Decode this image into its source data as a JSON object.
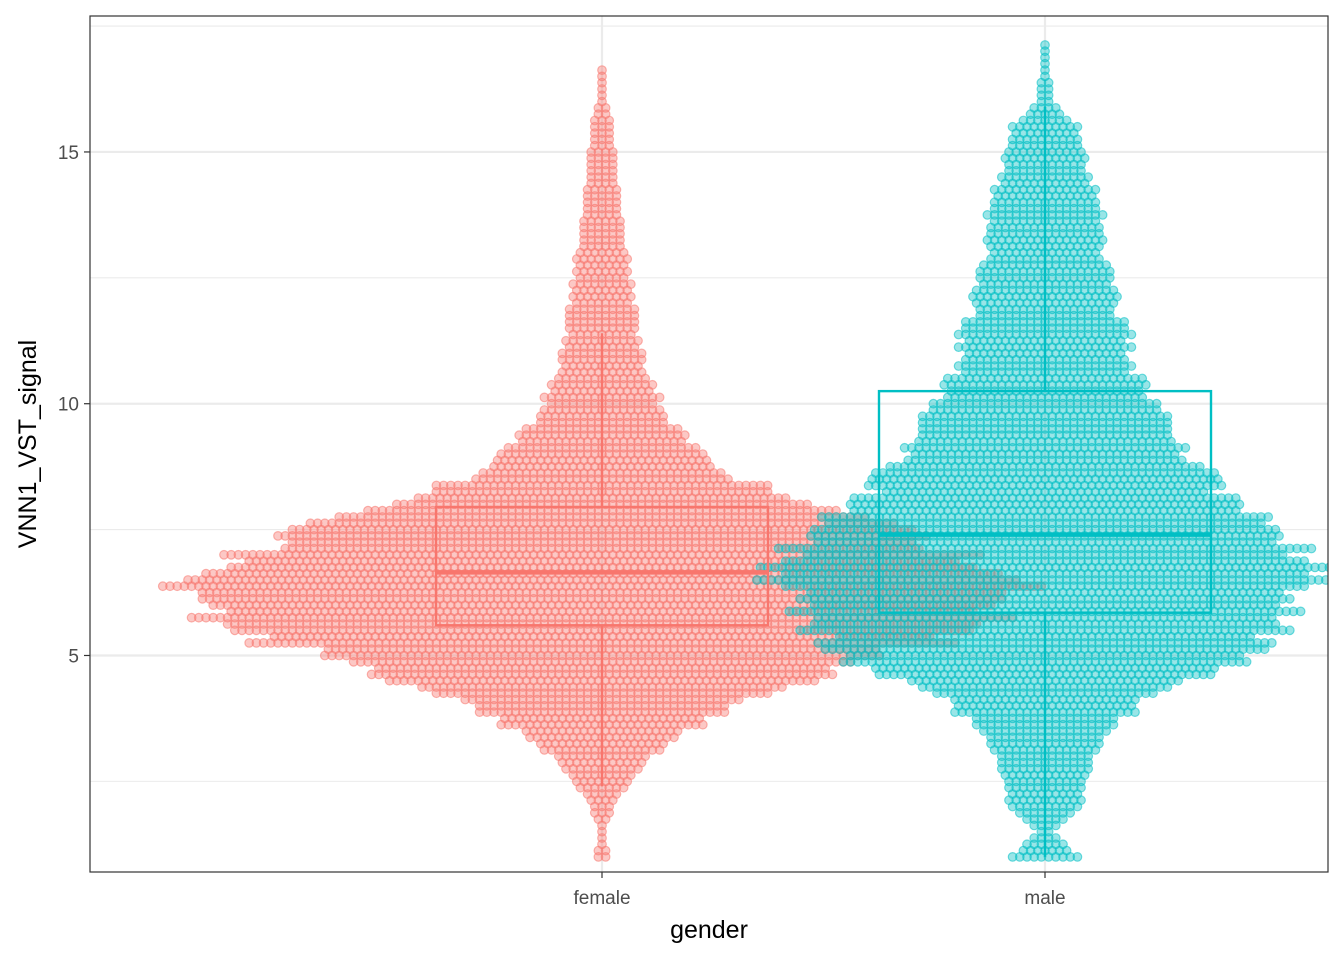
{
  "chart_data": {
    "type": "box",
    "overlay": "beeswarm",
    "xlabel": "gender",
    "ylabel": "VNN1_VST_signal",
    "categories": [
      "female",
      "male"
    ],
    "ylim": [
      0.7,
      17.7
    ],
    "yticks": [
      5,
      10,
      15
    ],
    "grid": true,
    "legend": "none",
    "colors": {
      "female": "#F8766D",
      "male": "#00BFC4"
    },
    "boxes": [
      {
        "name": "female",
        "q1": 5.6,
        "median": 6.65,
        "q3": 7.95,
        "whisker_low": 2.4,
        "whisker_high": 11.4,
        "min": 1.0,
        "max": 16.6,
        "color": "#F8766D"
      },
      {
        "name": "male",
        "q1": 5.85,
        "median": 7.4,
        "q3": 10.25,
        "whisker_low": 1.0,
        "whisker_high": 15.9,
        "min": 1.0,
        "max": 17.0,
        "color": "#00BFC4"
      }
    ],
    "distribution": {
      "female": [
        [
          1.0,
          2
        ],
        [
          1.5,
          1
        ],
        [
          2.0,
          3
        ],
        [
          2.5,
          8
        ],
        [
          3.0,
          14
        ],
        [
          3.5,
          24
        ],
        [
          4.0,
          36
        ],
        [
          4.5,
          58
        ],
        [
          5.0,
          80
        ],
        [
          5.5,
          100
        ],
        [
          6.0,
          112
        ],
        [
          6.5,
          118
        ],
        [
          7.0,
          102
        ],
        [
          7.5,
          82
        ],
        [
          8.0,
          56
        ],
        [
          8.5,
          38
        ],
        [
          9.0,
          28
        ],
        [
          9.5,
          20
        ],
        [
          10.0,
          16
        ],
        [
          10.5,
          13
        ],
        [
          11.0,
          11
        ],
        [
          11.5,
          10
        ],
        [
          12.0,
          9
        ],
        [
          12.5,
          8
        ],
        [
          13.0,
          7
        ],
        [
          13.5,
          6
        ],
        [
          14.0,
          5
        ],
        [
          14.5,
          4
        ],
        [
          15.0,
          4
        ],
        [
          15.5,
          3
        ],
        [
          16.0,
          1
        ],
        [
          16.5,
          1
        ]
      ],
      "male": [
        [
          1.0,
          10
        ],
        [
          1.5,
          2
        ],
        [
          2.0,
          10
        ],
        [
          2.5,
          12
        ],
        [
          3.0,
          14
        ],
        [
          3.5,
          18
        ],
        [
          4.0,
          26
        ],
        [
          4.5,
          38
        ],
        [
          5.0,
          56
        ],
        [
          5.5,
          66
        ],
        [
          6.0,
          70
        ],
        [
          6.5,
          74
        ],
        [
          7.0,
          74
        ],
        [
          7.5,
          66
        ],
        [
          8.0,
          52
        ],
        [
          8.5,
          46
        ],
        [
          9.0,
          40
        ],
        [
          9.5,
          34
        ],
        [
          10.0,
          30
        ],
        [
          10.5,
          26
        ],
        [
          11.0,
          24
        ],
        [
          11.5,
          22
        ],
        [
          12.0,
          20
        ],
        [
          12.5,
          18
        ],
        [
          13.0,
          17
        ],
        [
          13.5,
          16
        ],
        [
          14.0,
          15
        ],
        [
          14.5,
          13
        ],
        [
          15.0,
          11
        ],
        [
          15.5,
          9
        ],
        [
          16.0,
          2
        ],
        [
          17.0,
          1
        ]
      ]
    }
  }
}
